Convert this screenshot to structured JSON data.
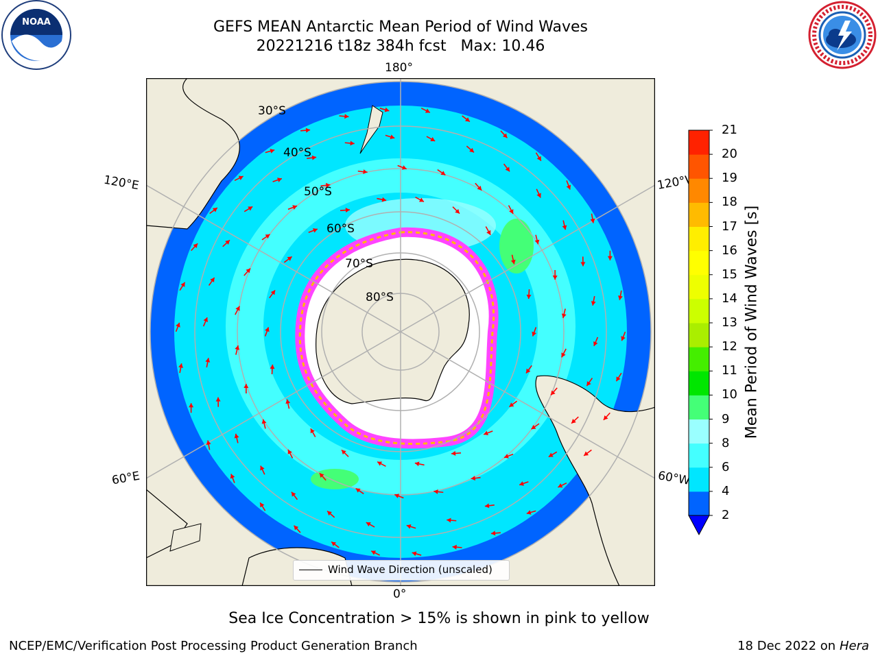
{
  "figure": {
    "title_line1": "GEFS MEAN Antarctic Mean Period of Wind Waves",
    "title_line2": "20221216 t18z 384h fcst   Max: 10.46",
    "note": "Sea Ice Concentration > 15% is shown in pink to yellow",
    "footer_left": "NCEP/EMC/Verification Post Processing Product Generation Branch",
    "footer_date": "18 Dec 2022 on",
    "footer_host": "Hera"
  },
  "map": {
    "projection": "south-polar-stereographic",
    "longitude_labels": {
      "top": "180°",
      "bottom": "0°",
      "upper_left": "120°E",
      "upper_right": "120°W",
      "lower_left": "60°E",
      "lower_right": "60°W"
    },
    "latitude_labels": [
      "30°S",
      "40°S",
      "50°S",
      "60°S",
      "70°S",
      "80°S"
    ],
    "legend_label": "Wind Wave Direction (unscaled)",
    "colors": {
      "land": "#efecdc",
      "ice_low": "#ff44ff",
      "ice_high": "#ffffff",
      "arrow": "#ff0000",
      "grid": "#b0b0b0"
    }
  },
  "colorbar": {
    "label": "Mean Period of Wind Waves [s]",
    "ticks": [
      "2",
      "4",
      "6",
      "8",
      "9",
      "10",
      "11",
      "12",
      "13",
      "14",
      "15",
      "16",
      "17",
      "18",
      "19",
      "20",
      "21"
    ],
    "colors": [
      "#0064ff",
      "#00e6ff",
      "#44ffff",
      "#9affff",
      "#44ff77",
      "#00e600",
      "#44ee00",
      "#aaee00",
      "#ccff00",
      "#eeff00",
      "#ffff00",
      "#ffee00",
      "#ffbb00",
      "#ff8800",
      "#ff5500",
      "#ff2200",
      "#ff0000"
    ],
    "extend_below_color": "#0000ff"
  }
}
